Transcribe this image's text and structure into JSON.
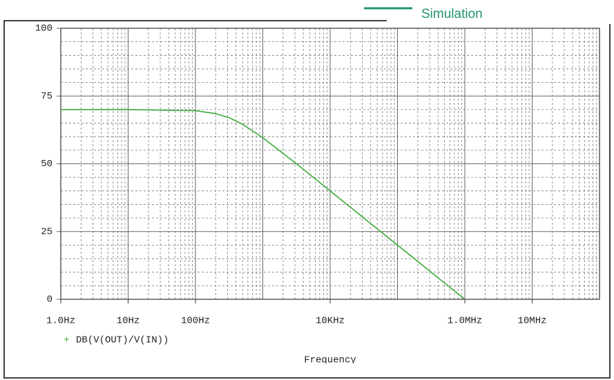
{
  "chart_data": {
    "type": "line",
    "annotation": "Simulation",
    "xlabel": "Frequency",
    "x": [
      1,
      10,
      100,
      200,
      316,
      500,
      1000,
      3162,
      10000,
      31623,
      100000,
      316228,
      1000000
    ],
    "series": [
      {
        "name": "DB(V(OUT)/V(IN))",
        "color": "#3aaa35",
        "values": [
          70,
          70,
          69.6,
          68.5,
          67,
          64.6,
          59.6,
          50,
          40,
          30,
          20,
          10,
          0
        ]
      }
    ],
    "xlim": [
      1,
      100000000
    ],
    "log_x": true,
    "xticks": [
      {
        "value": 1,
        "label": "1.0Hz"
      },
      {
        "value": 10,
        "label": "10Hz"
      },
      {
        "value": 100,
        "label": "100Hz"
      },
      {
        "value": 10000,
        "label": "10KHz"
      },
      {
        "value": 1000000,
        "label": "1.0MHz"
      },
      {
        "value": 10000000,
        "label": "10MHz"
      }
    ],
    "ylim": [
      0,
      100
    ],
    "yticks": [
      0,
      25,
      50,
      75,
      100
    ],
    "grid": true
  }
}
